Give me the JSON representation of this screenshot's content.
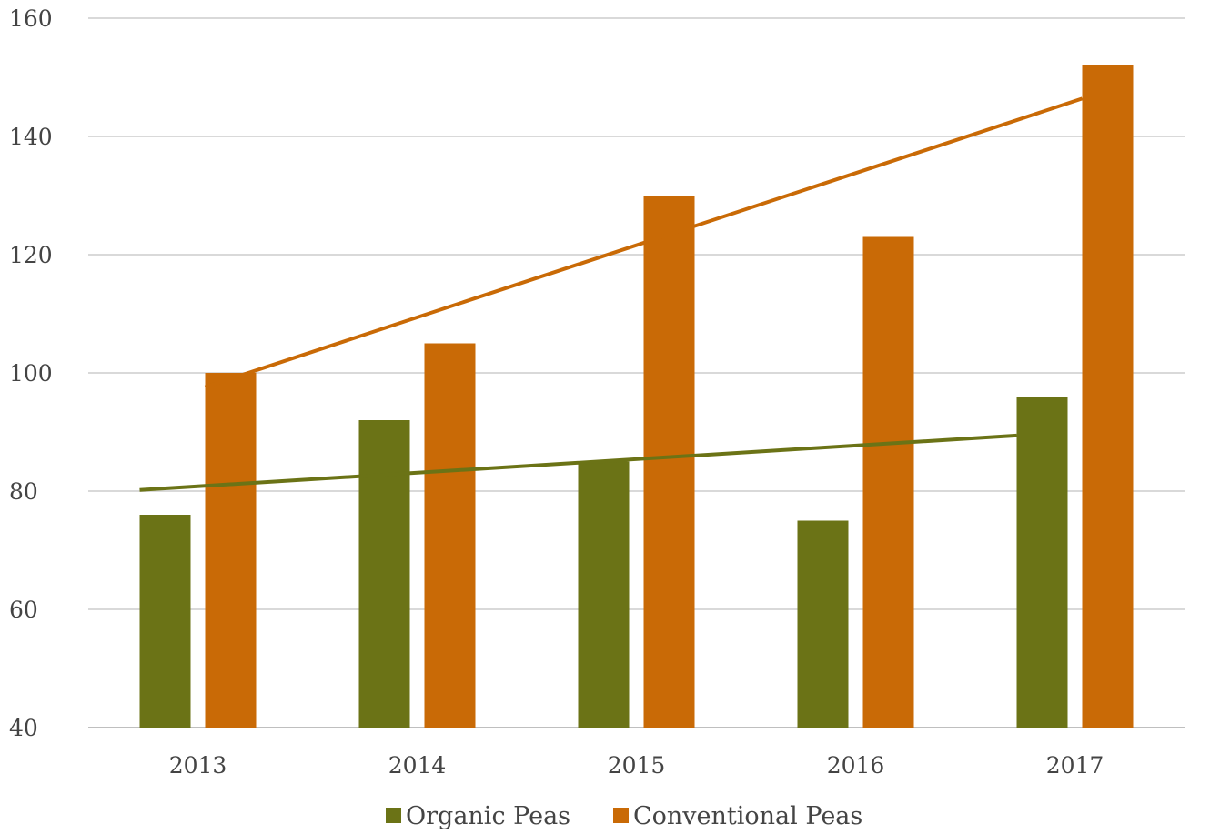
{
  "chart_data": {
    "type": "bar",
    "title": "",
    "xlabel": "",
    "ylabel": "",
    "categories": [
      "2013",
      "2014",
      "2015",
      "2016",
      "2017"
    ],
    "series": [
      {
        "name": "Organic Peas",
        "color": "#6b7316",
        "values": [
          76,
          92,
          85,
          75,
          96
        ]
      },
      {
        "name": "Conventional Peas",
        "color": "#c96a06",
        "values": [
          100,
          105,
          130,
          123,
          152
        ]
      }
    ],
    "trendlines": [
      {
        "series": "Organic Peas",
        "color": "#6b7316",
        "type": "linear"
      },
      {
        "series": "Conventional Peas",
        "color": "#c96a06",
        "type": "linear"
      }
    ],
    "ylim": [
      40,
      160
    ],
    "yticks": [
      "40",
      "60",
      "80",
      "100",
      "120",
      "140",
      "160"
    ],
    "grid": true,
    "legend_position": "bottom-center"
  }
}
